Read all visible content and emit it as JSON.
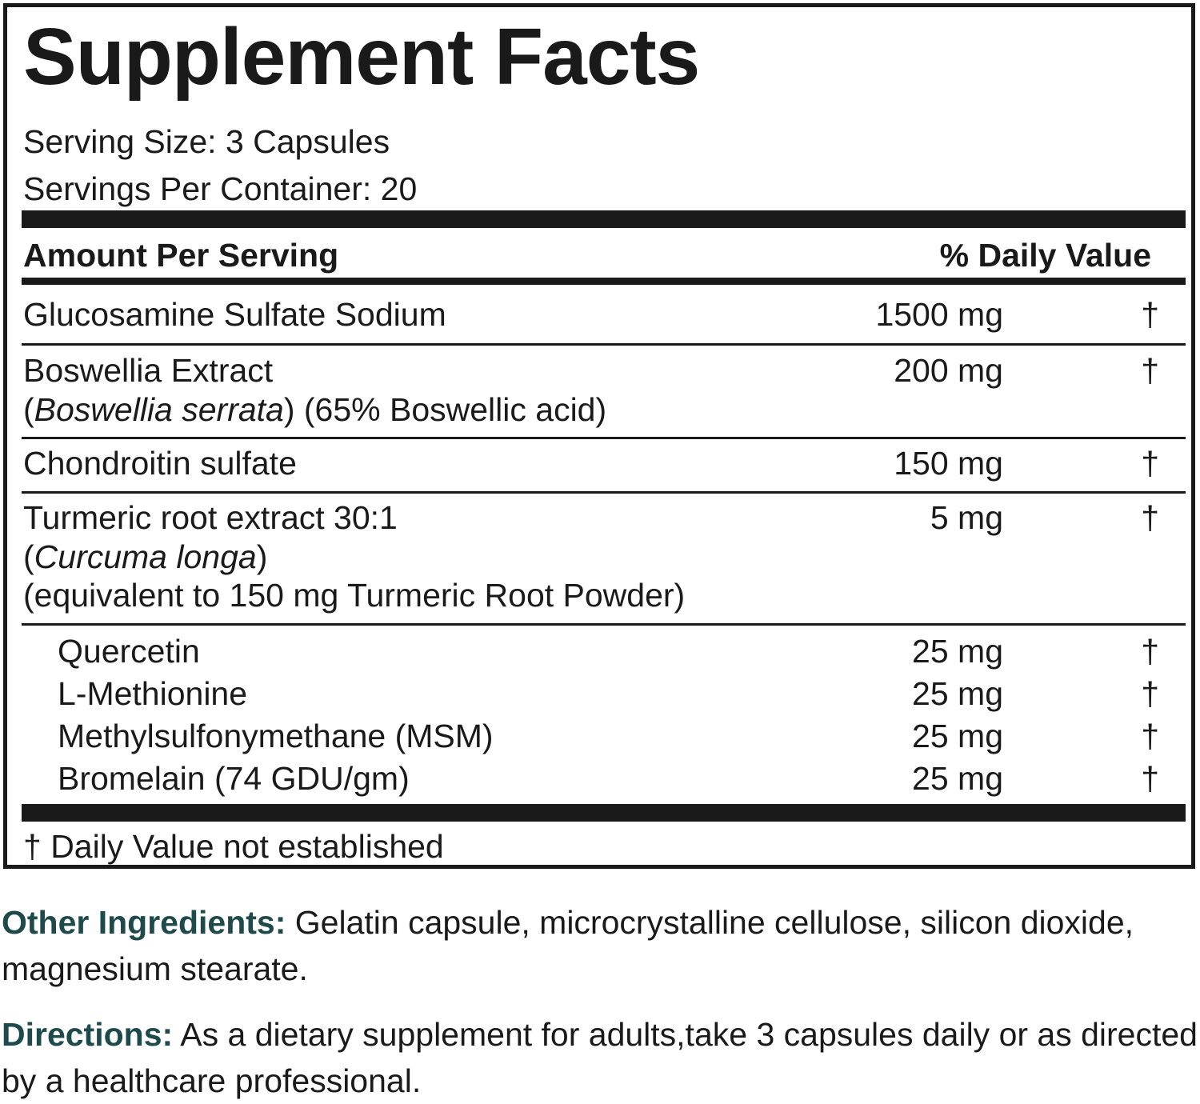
{
  "title": "Supplement Facts",
  "serving_size": "Serving Size: 3 Capsules",
  "servings_per_container": "Servings Per Container: 20",
  "header": {
    "amount_per_serving": "Amount Per Serving",
    "daily_value": "% Daily Value"
  },
  "rows": [
    {
      "name": "Glucosamine Sulfate Sodium",
      "amount": "1500 mg",
      "dv": "†"
    },
    {
      "name": "Boswellia Extract",
      "sub_open": "(",
      "sub_italic": "Boswellia serrata",
      "sub_close": ") (65% Boswellic acid)",
      "amount": "200 mg",
      "dv": "†"
    },
    {
      "name": "Chondroitin sulfate",
      "amount": "150 mg",
      "dv": "†"
    },
    {
      "name": "Turmeric root extract 30:1",
      "sub_open": "(",
      "sub_italic": "Curcuma longa",
      "sub_close": ")",
      "sub2": "(equivalent to 150 mg Turmeric Root Powder)",
      "amount": "5 mg",
      "dv": "†"
    }
  ],
  "sub_rows": [
    {
      "name": "Quercetin",
      "amount": "25 mg",
      "dv": "†"
    },
    {
      "name": "L-Methionine",
      "amount": "25 mg",
      "dv": "†"
    },
    {
      "name": "Methylsulfonymethane (MSM)",
      "amount": "25 mg",
      "dv": "†"
    },
    {
      "name": "Bromelain (74 GDU/gm)",
      "amount": "25 mg",
      "dv": "†"
    }
  ],
  "footnote": "† Daily Value not established",
  "other_ingredients": {
    "label": "Other Ingredients:",
    "text": " Gelatin capsule, microcrystalline cellulose, silicon dioxide, magnesium stearate."
  },
  "directions": {
    "label": "Directions:",
    "text": " As a dietary supplement for adults,take 3 capsules daily or as directed by a healthcare professional."
  },
  "colors": {
    "text": "#1a1a1a",
    "label_accent": "#1e4a4c"
  }
}
